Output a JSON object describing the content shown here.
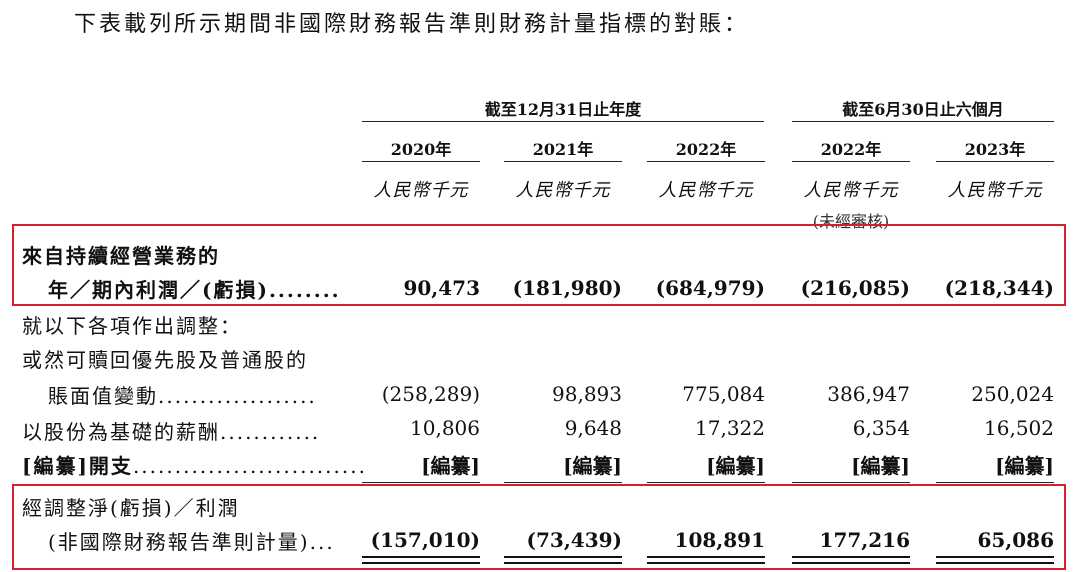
{
  "intro": "下表載列所示期間非國際財務報告準則財務計量指標的對賬：",
  "groups": {
    "year_end": "截至12月31日止年度",
    "half_year": "截至6月30日止六個月"
  },
  "columns": [
    {
      "year": "2020年",
      "unit": "人民幣千元"
    },
    {
      "year": "2021年",
      "unit": "人民幣千元"
    },
    {
      "year": "2022年",
      "unit": "人民幣千元"
    },
    {
      "year": "2022年",
      "unit": "人民幣千元",
      "note": "(未經審核)"
    },
    {
      "year": "2023年",
      "unit": "人民幣千元"
    }
  ],
  "rows": [
    {
      "label_lines": [
        "來自持續經營業務的",
        "年／期內利潤／(虧損)"
      ],
      "dots": "........",
      "values": [
        "90,473",
        "(181,980)",
        "(684,979)",
        "(216,085)",
        "(218,344)"
      ],
      "bold": true
    },
    {
      "label_lines": [
        "就以下各項作出調整："
      ],
      "dots": "",
      "values": []
    },
    {
      "label_lines": [
        "或然可贖回優先股及普通股的",
        "賬面值變動"
      ],
      "dots": "...................",
      "values": [
        "(258,289)",
        "98,893",
        "775,084",
        "386,947",
        "250,024"
      ]
    },
    {
      "label_lines": [
        "以股份為基礎的薪酬"
      ],
      "dots": "............",
      "values": [
        "10,806",
        "9,648",
        "17,322",
        "6,354",
        "16,502"
      ]
    },
    {
      "label_lines": [
        "[編纂]開支"
      ],
      "dots": "............................",
      "values": [
        "[編纂]",
        "[編纂]",
        "[編纂]",
        "[編纂]",
        "[編纂]"
      ]
    },
    {
      "label_lines": [
        "經調整淨(虧損)／利潤",
        "(非國際財務報告準則計量)"
      ],
      "dots": "...",
      "values": [
        "(157,010)",
        "(73,439)",
        "108,891",
        "177,216",
        "65,086"
      ],
      "bold": true
    }
  ],
  "highlight_color": "#d6202c"
}
